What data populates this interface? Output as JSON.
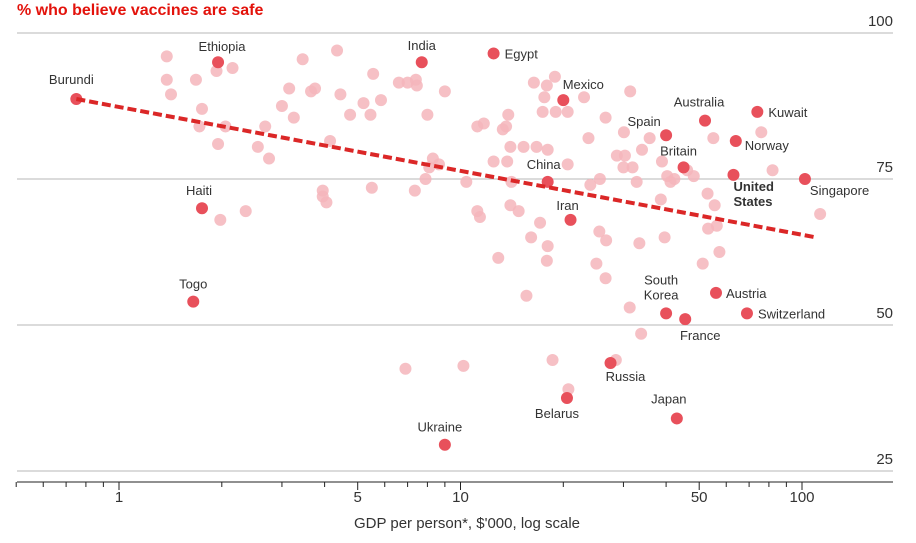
{
  "chart_data": {
    "type": "scatter",
    "title": "% who believe vaccines are safe",
    "xlabel": "GDP per person*, $'000, log scale",
    "ylabel": "",
    "x_scale": "log",
    "xlim": [
      0.45,
      130
    ],
    "ylim": [
      24,
      100
    ],
    "x_ticks": [
      1,
      5,
      10,
      50,
      100
    ],
    "y_ticks": [
      25,
      50,
      75,
      100
    ],
    "grid": true,
    "colors": {
      "accent": "#e3120b",
      "labelled_point": "#e8505b",
      "other_point": "#f5b5bb",
      "trend": "#db2727",
      "gridline": "#b7b7b7"
    },
    "trend_line": {
      "x": [
        0.75,
        110
      ],
      "y": [
        88.7,
        65
      ]
    },
    "labelled_points": [
      {
        "name": "Burundi",
        "x": 0.75,
        "y": 88.7
      },
      {
        "name": "Ethiopia",
        "x": 1.95,
        "y": 95
      },
      {
        "name": "India",
        "x": 7.7,
        "y": 95
      },
      {
        "name": "Egypt",
        "x": 12.5,
        "y": 96.5
      },
      {
        "name": "Mexico",
        "x": 20,
        "y": 88.5
      },
      {
        "name": "Australia",
        "x": 52,
        "y": 85
      },
      {
        "name": "Kuwait",
        "x": 74,
        "y": 86.5
      },
      {
        "name": "Spain",
        "x": 40,
        "y": 82.5
      },
      {
        "name": "Norway",
        "x": 64,
        "y": 81.5
      },
      {
        "name": "Britain",
        "x": 45,
        "y": 77
      },
      {
        "name": "China",
        "x": 18,
        "y": 74.5
      },
      {
        "name": "United States",
        "x": 63,
        "y": 75.7
      },
      {
        "name": "Singapore",
        "x": 102,
        "y": 75
      },
      {
        "name": "Haiti",
        "x": 1.75,
        "y": 70
      },
      {
        "name": "Iran",
        "x": 21,
        "y": 68
      },
      {
        "name": "Togo",
        "x": 1.65,
        "y": 54
      },
      {
        "name": "South Korea",
        "x": 40,
        "y": 52
      },
      {
        "name": "France",
        "x": 45.5,
        "y": 51
      },
      {
        "name": "Austria",
        "x": 56,
        "y": 55.5
      },
      {
        "name": "Switzerland",
        "x": 69,
        "y": 52
      },
      {
        "name": "Russia",
        "x": 27.5,
        "y": 43.5
      },
      {
        "name": "Belarus",
        "x": 20.5,
        "y": 37.5
      },
      {
        "name": "Japan",
        "x": 43,
        "y": 34
      },
      {
        "name": "Ukraine",
        "x": 9,
        "y": 29.5
      }
    ],
    "other_points": [
      {
        "x": 1.38,
        "y": 96
      },
      {
        "x": 1.38,
        "y": 92
      },
      {
        "x": 1.42,
        "y": 89.5
      },
      {
        "x": 1.68,
        "y": 92
      },
      {
        "x": 1.75,
        "y": 87
      },
      {
        "x": 1.72,
        "y": 84
      },
      {
        "x": 1.93,
        "y": 93.5
      },
      {
        "x": 2.05,
        "y": 84
      },
      {
        "x": 2.15,
        "y": 94
      },
      {
        "x": 1.95,
        "y": 81
      },
      {
        "x": 2.35,
        "y": 69.5
      },
      {
        "x": 1.98,
        "y": 68
      },
      {
        "x": 2.55,
        "y": 80.5
      },
      {
        "x": 2.68,
        "y": 84
      },
      {
        "x": 2.75,
        "y": 78.5
      },
      {
        "x": 3.0,
        "y": 87.5
      },
      {
        "x": 3.25,
        "y": 85.5
      },
      {
        "x": 3.15,
        "y": 90.5
      },
      {
        "x": 3.45,
        "y": 95.5
      },
      {
        "x": 3.75,
        "y": 90.5
      },
      {
        "x": 3.65,
        "y": 90
      },
      {
        "x": 4.35,
        "y": 97
      },
      {
        "x": 4.45,
        "y": 89.5
      },
      {
        "x": 4.15,
        "y": 81.5
      },
      {
        "x": 3.95,
        "y": 73
      },
      {
        "x": 3.95,
        "y": 72
      },
      {
        "x": 4.05,
        "y": 71
      },
      {
        "x": 4.75,
        "y": 86
      },
      {
        "x": 5.2,
        "y": 88
      },
      {
        "x": 5.55,
        "y": 93
      },
      {
        "x": 5.45,
        "y": 86
      },
      {
        "x": 5.85,
        "y": 88.5
      },
      {
        "x": 5.5,
        "y": 73.5
      },
      {
        "x": 6.6,
        "y": 91.5
      },
      {
        "x": 7.0,
        "y": 91.5
      },
      {
        "x": 7.4,
        "y": 92
      },
      {
        "x": 7.45,
        "y": 91
      },
      {
        "x": 8.0,
        "y": 86
      },
      {
        "x": 8.3,
        "y": 78.5
      },
      {
        "x": 8.65,
        "y": 77.5
      },
      {
        "x": 7.9,
        "y": 75
      },
      {
        "x": 7.35,
        "y": 73
      },
      {
        "x": 8.1,
        "y": 77
      },
      {
        "x": 9.0,
        "y": 90
      },
      {
        "x": 10.4,
        "y": 74.5
      },
      {
        "x": 11.2,
        "y": 84
      },
      {
        "x": 11.7,
        "y": 84.5
      },
      {
        "x": 11.2,
        "y": 69.5
      },
      {
        "x": 11.4,
        "y": 68.5
      },
      {
        "x": 12.5,
        "y": 78
      },
      {
        "x": 13.6,
        "y": 84
      },
      {
        "x": 13.8,
        "y": 86
      },
      {
        "x": 13.3,
        "y": 83.5
      },
      {
        "x": 14.0,
        "y": 80.5
      },
      {
        "x": 13.7,
        "y": 78
      },
      {
        "x": 14.1,
        "y": 74.5
      },
      {
        "x": 14.0,
        "y": 70.5
      },
      {
        "x": 14.8,
        "y": 69.5
      },
      {
        "x": 15.3,
        "y": 80.5
      },
      {
        "x": 16.1,
        "y": 65
      },
      {
        "x": 16.7,
        "y": 80.5
      },
      {
        "x": 17.1,
        "y": 67.5
      },
      {
        "x": 16.4,
        "y": 91.5
      },
      {
        "x": 17.6,
        "y": 89
      },
      {
        "x": 17.9,
        "y": 91
      },
      {
        "x": 17.4,
        "y": 86.5
      },
      {
        "x": 18.0,
        "y": 80
      },
      {
        "x": 18.9,
        "y": 92.5
      },
      {
        "x": 19.0,
        "y": 86.5
      },
      {
        "x": 20.6,
        "y": 86.5
      },
      {
        "x": 20.6,
        "y": 77.5
      },
      {
        "x": 12.9,
        "y": 61.5
      },
      {
        "x": 15.6,
        "y": 55
      },
      {
        "x": 18.0,
        "y": 63.5
      },
      {
        "x": 17.9,
        "y": 61
      },
      {
        "x": 18.6,
        "y": 44
      },
      {
        "x": 10.2,
        "y": 43
      },
      {
        "x": 6.9,
        "y": 42.5
      },
      {
        "x": 20.7,
        "y": 39
      },
      {
        "x": 25.5,
        "y": 66
      },
      {
        "x": 25.0,
        "y": 60.5
      },
      {
        "x": 24.0,
        "y": 74
      },
      {
        "x": 25.6,
        "y": 75
      },
      {
        "x": 28.5,
        "y": 44
      },
      {
        "x": 26.7,
        "y": 64.5
      },
      {
        "x": 26.6,
        "y": 58
      },
      {
        "x": 23.0,
        "y": 89
      },
      {
        "x": 23.7,
        "y": 82
      },
      {
        "x": 26.6,
        "y": 85.5
      },
      {
        "x": 28.7,
        "y": 79
      },
      {
        "x": 30.3,
        "y": 79
      },
      {
        "x": 30.0,
        "y": 77
      },
      {
        "x": 31.9,
        "y": 77
      },
      {
        "x": 32.8,
        "y": 74.5
      },
      {
        "x": 33.4,
        "y": 64
      },
      {
        "x": 33.8,
        "y": 48.5
      },
      {
        "x": 31.4,
        "y": 90
      },
      {
        "x": 30.1,
        "y": 83
      },
      {
        "x": 34.0,
        "y": 80
      },
      {
        "x": 38.6,
        "y": 71.5
      },
      {
        "x": 38.9,
        "y": 78
      },
      {
        "x": 39.6,
        "y": 65
      },
      {
        "x": 40.3,
        "y": 75.5
      },
      {
        "x": 42.3,
        "y": 75
      },
      {
        "x": 41.2,
        "y": 74.5
      },
      {
        "x": 35.8,
        "y": 82
      },
      {
        "x": 31.3,
        "y": 53
      },
      {
        "x": 46.1,
        "y": 76.5
      },
      {
        "x": 48.2,
        "y": 75.5
      },
      {
        "x": 51.2,
        "y": 60.5
      },
      {
        "x": 52.9,
        "y": 72.5
      },
      {
        "x": 53.1,
        "y": 66.5
      },
      {
        "x": 55.0,
        "y": 82
      },
      {
        "x": 55.5,
        "y": 70.5
      },
      {
        "x": 56.3,
        "y": 67
      },
      {
        "x": 57.3,
        "y": 62.5
      },
      {
        "x": 76.0,
        "y": 83
      },
      {
        "x": 82.0,
        "y": 76.5
      },
      {
        "x": 113.0,
        "y": 69
      }
    ]
  }
}
